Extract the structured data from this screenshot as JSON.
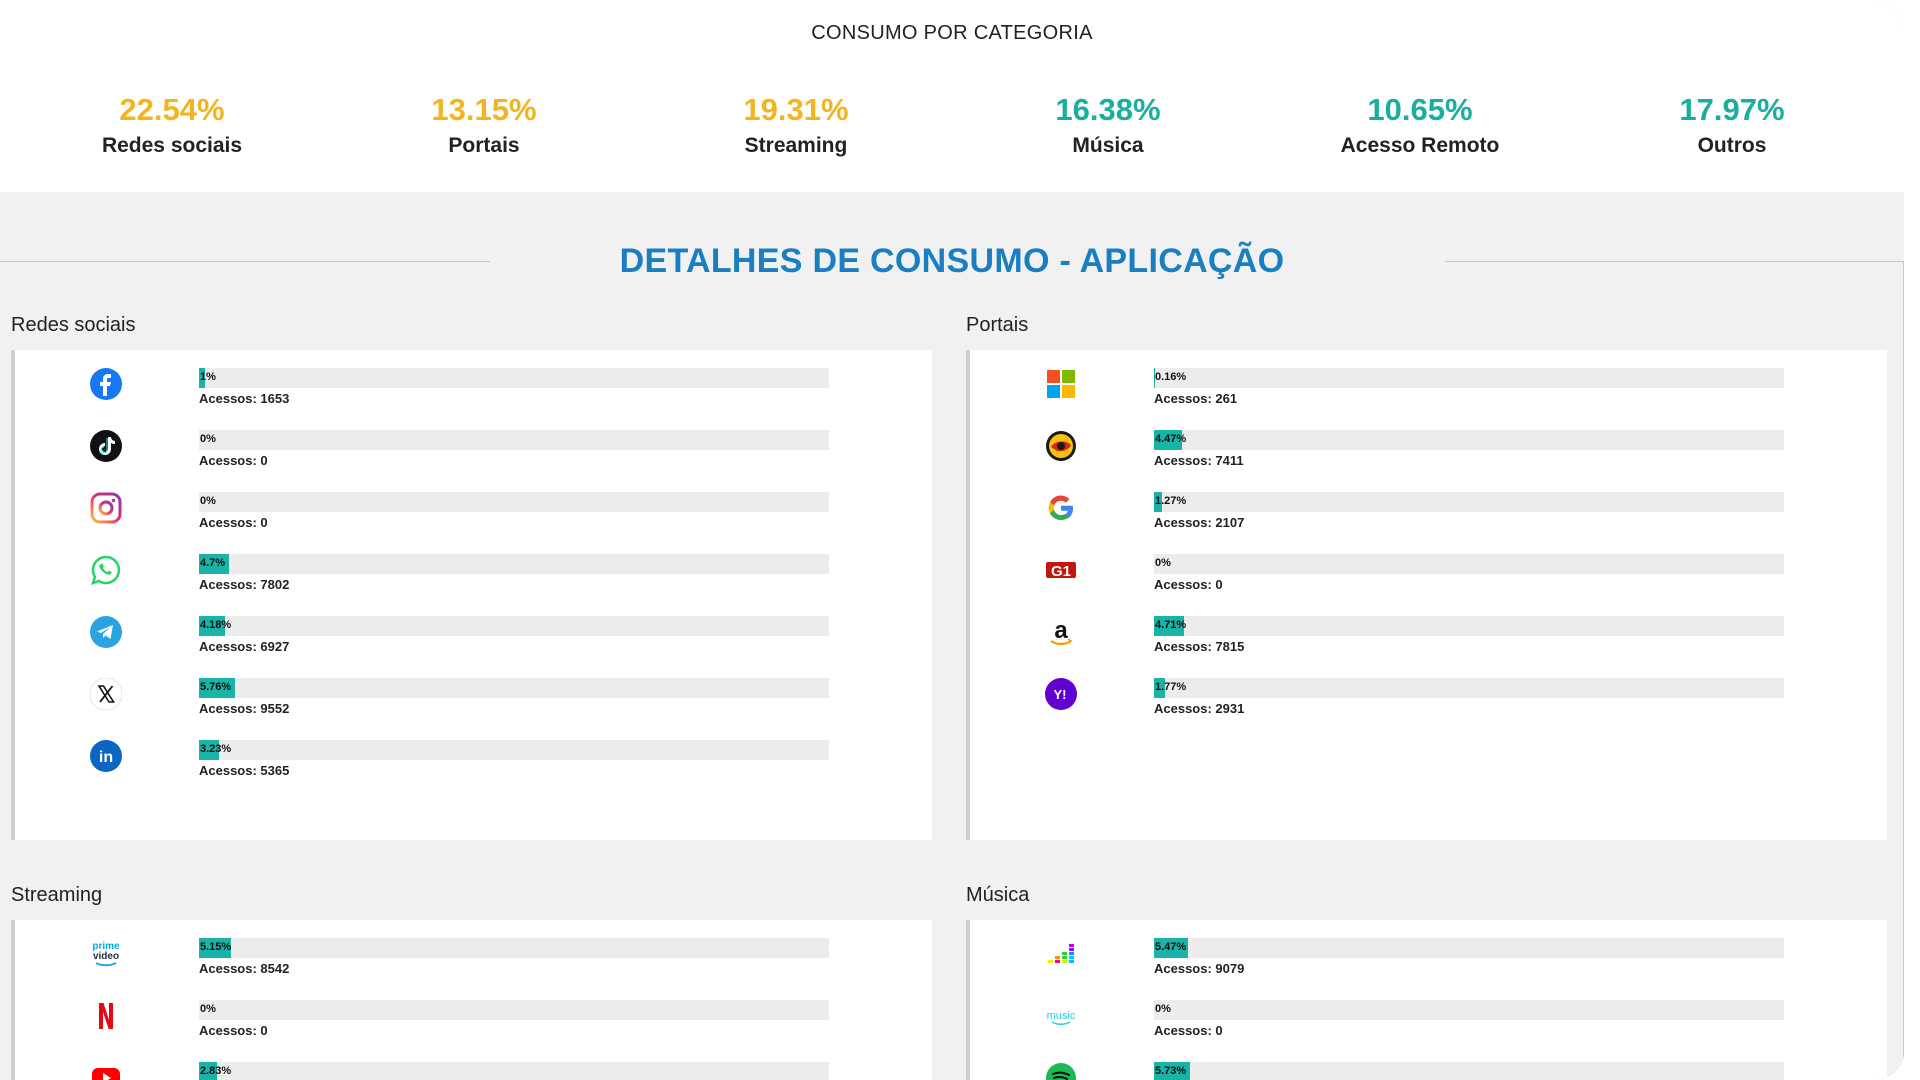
{
  "summary": {
    "title": "CONSUMO POR CATEGORIA",
    "stats": [
      {
        "value": "22.54%",
        "label": "Redes sociais",
        "color": "#f2b420"
      },
      {
        "value": "13.15%",
        "label": "Portais",
        "color": "#f2b420"
      },
      {
        "value": "19.31%",
        "label": "Streaming",
        "color": "#f2b420"
      },
      {
        "value": "16.38%",
        "label": "Música",
        "color": "#19aea0"
      },
      {
        "value": "10.65%",
        "label": "Acesso Remoto",
        "color": "#19aea0"
      },
      {
        "value": "17.97%",
        "label": "Outros",
        "color": "#19aea0"
      }
    ]
  },
  "details": {
    "title": "DETALHES DE CONSUMO - APLICAÇÃO",
    "accent_color": "#1a7fc1",
    "bar_color": "#19b3a8"
  },
  "categories": {
    "social": {
      "label": "Redes sociais",
      "apps": [
        {
          "icon": "facebook-icon",
          "percent_label": "1%",
          "percent": 1,
          "accesses": "Acessos: 1653"
        },
        {
          "icon": "tiktok-icon",
          "percent_label": "0%",
          "percent": 0,
          "accesses": "Acessos: 0"
        },
        {
          "icon": "instagram-icon",
          "percent_label": "0%",
          "percent": 0,
          "accesses": "Acessos: 0"
        },
        {
          "icon": "whatsapp-icon",
          "percent_label": "4.7%",
          "percent": 4.7,
          "accesses": "Acessos: 7802"
        },
        {
          "icon": "telegram-icon",
          "percent_label": "4.18%",
          "percent": 4.18,
          "accesses": "Acessos: 6927"
        },
        {
          "icon": "x-icon",
          "percent_label": "5.76%",
          "percent": 5.76,
          "accesses": "Acessos: 9552"
        },
        {
          "icon": "linkedin-icon",
          "percent_label": "3.23%",
          "percent": 3.23,
          "accesses": "Acessos: 5365"
        }
      ]
    },
    "portals": {
      "label": "Portais",
      "apps": [
        {
          "icon": "microsoft-icon",
          "percent_label": "0.16%",
          "percent": 0.16,
          "accesses": "Acessos: 261"
        },
        {
          "icon": "uol-icon",
          "percent_label": "4.47%",
          "percent": 4.47,
          "accesses": "Acessos: 7411"
        },
        {
          "icon": "google-icon",
          "percent_label": "1.27%",
          "percent": 1.27,
          "accesses": "Acessos: 2107"
        },
        {
          "icon": "g1-icon",
          "percent_label": "0%",
          "percent": 0,
          "accesses": "Acessos: 0"
        },
        {
          "icon": "amazon-icon",
          "percent_label": "4.71%",
          "percent": 4.71,
          "accesses": "Acessos: 7815"
        },
        {
          "icon": "yahoo-icon",
          "percent_label": "1.77%",
          "percent": 1.77,
          "accesses": "Acessos: 2931"
        }
      ]
    },
    "streaming": {
      "label": "Streaming",
      "apps": [
        {
          "icon": "prime-video-icon",
          "percent_label": "5.15%",
          "percent": 5.15,
          "accesses": "Acessos: 8542"
        },
        {
          "icon": "netflix-icon",
          "percent_label": "0%",
          "percent": 0,
          "accesses": "Acessos: 0"
        },
        {
          "icon": "youtube-icon",
          "percent_label": "2.83%",
          "percent": 2.83,
          "accesses": ""
        }
      ]
    },
    "music": {
      "label": "Música",
      "apps": [
        {
          "icon": "deezer-icon",
          "percent_label": "5.47%",
          "percent": 5.47,
          "accesses": "Acessos: 9079"
        },
        {
          "icon": "amazon-music-icon",
          "percent_label": "0%",
          "percent": 0,
          "accesses": "Acessos: 0"
        },
        {
          "icon": "spotify-icon",
          "percent_label": "5.73%",
          "percent": 5.73,
          "accesses": ""
        }
      ]
    }
  }
}
